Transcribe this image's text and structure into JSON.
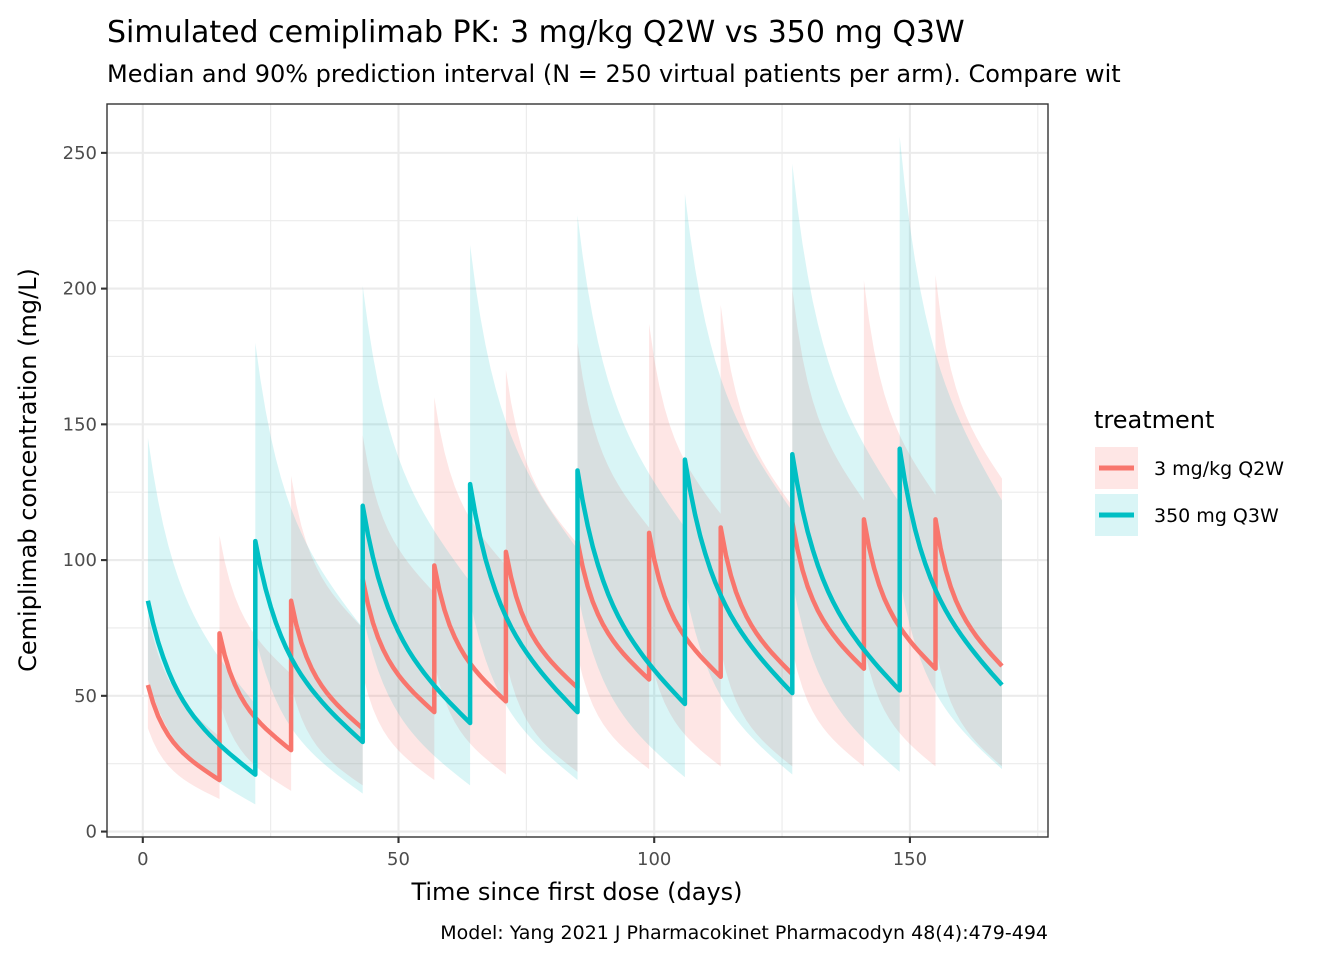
{
  "chart_data": {
    "type": "line",
    "title": "Simulated cemiplimab PK: 3 mg/kg Q2W vs 350 mg Q3W",
    "subtitle": "Median and 90% prediction interval (N = 250 virtual patients per arm). Compare wit",
    "xlabel": "Time since first dose (days)",
    "ylabel": "Cemiplimab concentration (mg/L)",
    "caption": "Model: Yang 2021 J Pharmacokinet Pharmacodyn 48(4):479-494",
    "xlim": [
      -7,
      177
    ],
    "ylim": [
      -2,
      268
    ],
    "x_ticks": [
      0,
      50,
      100,
      150
    ],
    "x_tick_labels": [
      "0",
      "50",
      "100",
      "150"
    ],
    "y_ticks": [
      0,
      50,
      100,
      150,
      200,
      250
    ],
    "y_tick_labels": [
      "0",
      "50",
      "100",
      "150",
      "200",
      "250"
    ],
    "grid": true,
    "legend": {
      "title": "treatment",
      "placement": "right",
      "entries": [
        "3 mg/kg Q2W",
        "350 mg Q3W"
      ]
    },
    "series": [
      {
        "name": "3 mg/kg Q2W",
        "color": "#F8766D",
        "ribbon_color": "#F8766D",
        "dose_days": [
          1,
          15,
          29,
          43,
          57,
          71,
          85,
          99,
          113,
          127,
          141,
          155
        ],
        "end_day": 168,
        "median_peaks": [
          54,
          73,
          85,
          93,
          98,
          103,
          107,
          110,
          112,
          114,
          115,
          115
        ],
        "median_troughs": [
          19,
          30,
          38,
          44,
          48,
          53,
          56,
          57,
          58,
          60,
          60,
          61
        ],
        "pi_upper_peaks": [
          80,
          109,
          131,
          146,
          160,
          170,
          180,
          187,
          194,
          200,
          203,
          205
        ],
        "pi_upper_troughs": [
          35,
          58,
          75,
          88,
          98,
          106,
          112,
          117,
          120,
          122,
          124,
          130
        ],
        "pi_lower_peaks": [
          38,
          48,
          54,
          58,
          62,
          63,
          65,
          66,
          67,
          67,
          68,
          68
        ],
        "pi_lower_troughs": [
          12,
          15,
          17,
          19,
          21,
          22,
          23,
          24,
          24,
          24,
          24,
          24
        ]
      },
      {
        "name": "350 mg Q3W",
        "color": "#00BFC4",
        "ribbon_color": "#00BFC4",
        "dose_days": [
          1,
          22,
          43,
          64,
          85,
          106,
          127,
          148
        ],
        "end_day": 168,
        "median_peaks": [
          85,
          107,
          120,
          128,
          133,
          137,
          139,
          141
        ],
        "median_troughs": [
          21,
          33,
          40,
          44,
          47,
          51,
          52,
          54
        ],
        "pi_upper_peaks": [
          145,
          180,
          201,
          216,
          227,
          235,
          246,
          256
        ],
        "pi_upper_troughs": [
          47,
          75,
          92,
          104,
          112,
          118,
          121,
          122
        ],
        "pi_lower_peaks": [
          56,
          72,
          80,
          85,
          88,
          90,
          92,
          93
        ],
        "pi_lower_troughs": [
          10,
          14,
          17,
          19,
          20,
          21,
          22,
          23
        ]
      }
    ]
  }
}
